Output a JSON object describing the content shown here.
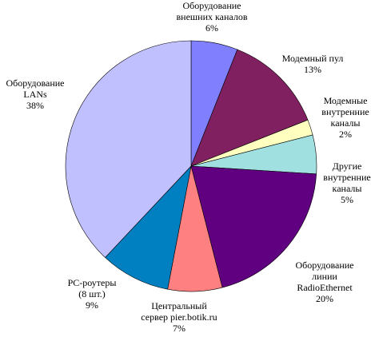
{
  "chart_data": {
    "type": "pie",
    "title": "",
    "slices": [
      {
        "label": [
          "Оборудование",
          "внешних каналов"
        ],
        "value": 6,
        "value_label": "6%",
        "color": "#8080ff"
      },
      {
        "label": [
          "Модемный пул"
        ],
        "value": 13,
        "value_label": "13%",
        "color": "#802060"
      },
      {
        "label": [
          "Модемные",
          "внутренние",
          "каналы"
        ],
        "value": 2,
        "value_label": "2%",
        "color": "#ffffc0"
      },
      {
        "label": [
          "Другие",
          "внутренние",
          "каналы"
        ],
        "value": 5,
        "value_label": "5%",
        "color": "#a0e0e0"
      },
      {
        "label": [
          "Оборудование",
          "линии",
          "RadioEthernet"
        ],
        "value": 20,
        "value_label": "20%",
        "color": "#600080"
      },
      {
        "label": [
          "Центральный",
          "сервер pier.botik.ru"
        ],
        "value": 7,
        "value_label": "7%",
        "color": "#ff8080"
      },
      {
        "label": [
          "PC-роутеры",
          "(8 шт.)"
        ],
        "value": 9,
        "value_label": "9%",
        "color": "#0080c0"
      },
      {
        "label": [
          "Оборудование",
          "LANs"
        ],
        "value": 38,
        "value_label": "38%",
        "color": "#c0c0ff"
      }
    ],
    "legend": "none"
  }
}
